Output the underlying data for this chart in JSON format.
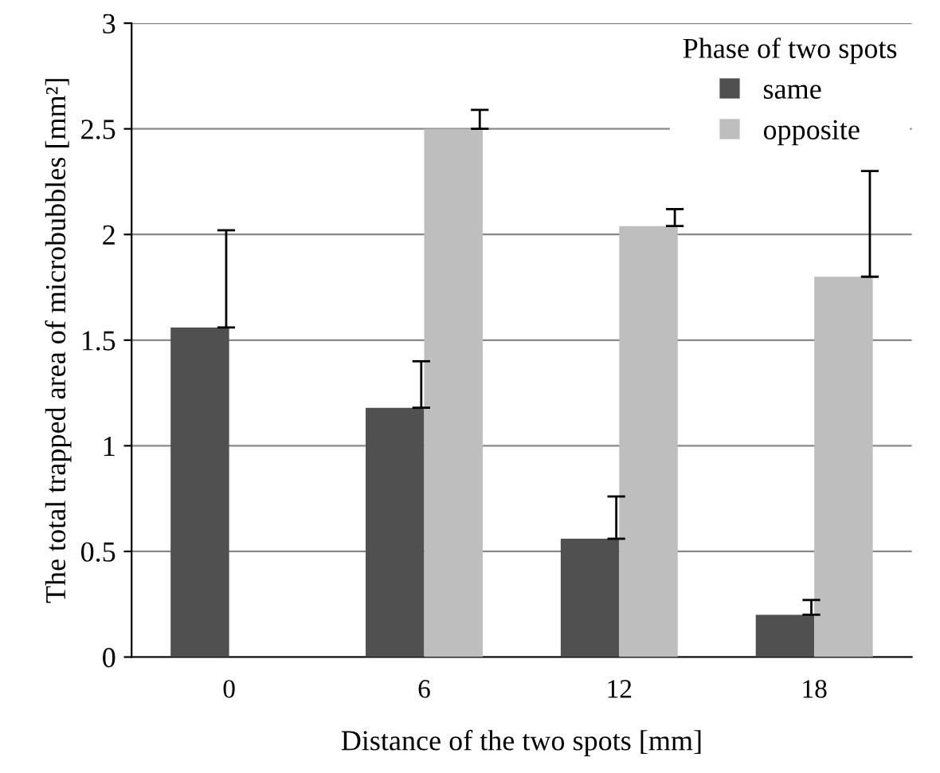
{
  "chart_data": {
    "type": "bar",
    "xlabel": "Distance of the two spots [mm]",
    "ylabel": "The total trapped area of microbubbles [mm²]",
    "legend_title": "Phase of two spots",
    "categories": [
      "0",
      "6",
      "12",
      "18"
    ],
    "series": [
      {
        "name": "same",
        "color": "#505050",
        "values": [
          1.56,
          1.18,
          0.56,
          0.2
        ],
        "errors": [
          [
            1.56,
            2.02
          ],
          [
            1.18,
            1.4
          ],
          [
            0.56,
            0.76
          ],
          [
            0.2,
            0.27
          ]
        ]
      },
      {
        "name": "opposite",
        "color": "#bebebe",
        "values": [
          null,
          2.5,
          2.04,
          1.8
        ],
        "errors": [
          null,
          [
            2.5,
            2.59
          ],
          [
            2.04,
            2.12
          ],
          [
            1.8,
            2.3
          ]
        ]
      }
    ],
    "ylim": [
      0,
      3
    ],
    "yticks": [
      0,
      0.5,
      1,
      1.5,
      2,
      2.5,
      3
    ],
    "grid": "y",
    "legend": "top right"
  }
}
